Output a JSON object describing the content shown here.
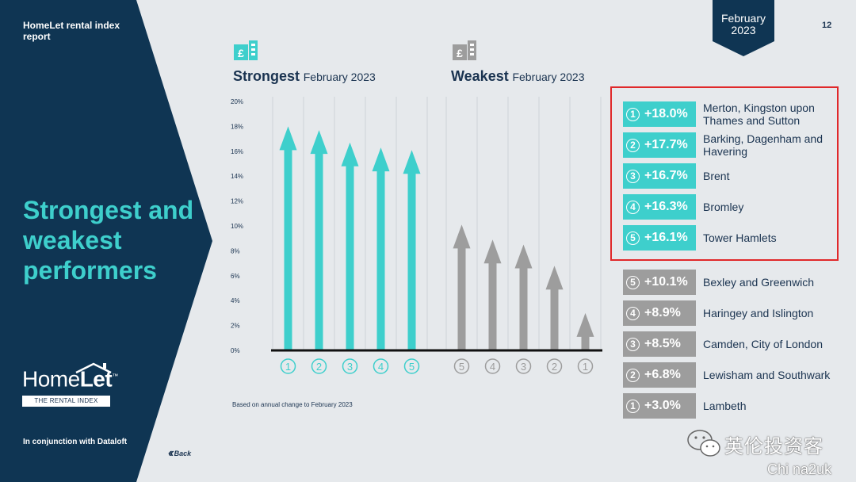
{
  "sidebar": {
    "report_title": "HomeLet rental index report",
    "section_title": "Strongest and weakest performers",
    "logo_text_a": "Home",
    "logo_text_b": "Let",
    "logo_tm": "™",
    "logo_subtitle": "THE RENTAL INDEX",
    "conjunction": "In conjunction with Dataloft",
    "back_label": "Back"
  },
  "header": {
    "date_line1": "February",
    "date_line2": "2023",
    "page_number": "12"
  },
  "strongest_heading": {
    "bold": "Strongest",
    "sub": "February 2023"
  },
  "weakest_heading": {
    "bold": "Weakest",
    "sub": "February 2023"
  },
  "footnote": "Based on annual change to February 2023",
  "colors": {
    "navy": "#0f3553",
    "teal": "#3ecfcc",
    "grey": "#9d9d9d",
    "text": "#1a3350",
    "highlight": "#e0282a"
  },
  "chart_data": {
    "type": "bar",
    "ylim": [
      0,
      20
    ],
    "yticks": [
      "0%",
      "2%",
      "4%",
      "6%",
      "8%",
      "10%",
      "12%",
      "14%",
      "16%",
      "18%",
      "20%"
    ],
    "series": [
      {
        "name": "Strongest",
        "categories": [
          "1",
          "2",
          "3",
          "4",
          "5"
        ],
        "values": [
          18.0,
          17.7,
          16.7,
          16.3,
          16.1
        ],
        "color": "#3ecfcc"
      },
      {
        "name": "Weakest",
        "categories": [
          "5",
          "4",
          "3",
          "2",
          "1"
        ],
        "values": [
          10.1,
          8.9,
          8.5,
          6.8,
          3.0
        ],
        "color": "#9d9d9d"
      }
    ]
  },
  "strongest_list": [
    {
      "rank": "1",
      "change": "+18.0%",
      "area": "Merton, Kingston upon Thames and Sutton"
    },
    {
      "rank": "2",
      "change": "+17.7%",
      "area": "Barking, Dagenham and Havering"
    },
    {
      "rank": "3",
      "change": "+16.7%",
      "area": "Brent"
    },
    {
      "rank": "4",
      "change": "+16.3%",
      "area": "Bromley"
    },
    {
      "rank": "5",
      "change": "+16.1%",
      "area": "Tower Hamlets"
    }
  ],
  "weakest_list": [
    {
      "rank": "5",
      "change": "+10.1%",
      "area": "Bexley and Greenwich"
    },
    {
      "rank": "4",
      "change": "+8.9%",
      "area": "Haringey and Islington"
    },
    {
      "rank": "3",
      "change": "+8.5%",
      "area": "Camden, City of London"
    },
    {
      "rank": "2",
      "change": "+6.8%",
      "area": "Lewisham and Southwark"
    },
    {
      "rank": "1",
      "change": "+3.0%",
      "area": "Lambeth"
    }
  ],
  "watermark": {
    "text": "英伦投资客",
    "text2": "Chi na2uk"
  }
}
